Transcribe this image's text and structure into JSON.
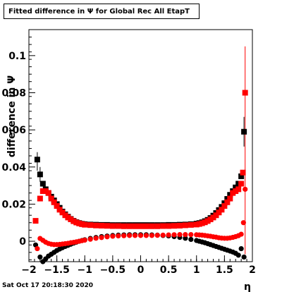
{
  "title": "Fitted difference in  Ψ  for Global Rec All EtapT",
  "footer_date": "Sat Oct 17 20:18:30 2020",
  "colors": {
    "black": "#000000",
    "red": "#ff0000"
  },
  "chart_data": {
    "type": "scatter",
    "title": "Fitted difference in  Ψ  for Global Rec All EtapT",
    "xlabel": "η",
    "ylabel": "difference in  Ψ",
    "xlim": [
      -2,
      2
    ],
    "ylim": [
      -0.011,
      0.114
    ],
    "x_ticks": [
      -2,
      -1.5,
      -1,
      -0.5,
      0,
      0.5,
      1,
      1.5,
      2
    ],
    "x_tick_labels": [
      "−2",
      "−1.5",
      "−1",
      "−0.5",
      "0",
      "0.5",
      "1",
      "1.5",
      "2"
    ],
    "y_ticks": [
      0,
      0.02,
      0.04,
      0.06,
      0.08,
      0.1
    ],
    "y_tick_labels": [
      "0",
      "0.02",
      "0.04",
      "0.06",
      "0.08",
      "0.1"
    ],
    "grid": false,
    "series": [
      {
        "color": "#000000",
        "marker": "square",
        "points": [
          [
            -1.85,
            0.044
          ],
          [
            -1.8,
            0.036
          ],
          [
            -1.75,
            0.031
          ],
          [
            -1.7,
            0.028
          ],
          [
            -1.65,
            0.026
          ],
          [
            -1.6,
            0.024
          ],
          [
            -1.55,
            0.022
          ],
          [
            -1.5,
            0.02
          ],
          [
            -1.45,
            0.018
          ],
          [
            -1.4,
            0.016
          ],
          [
            -1.35,
            0.0145
          ],
          [
            -1.3,
            0.0132
          ],
          [
            -1.25,
            0.012
          ],
          [
            -1.2,
            0.011
          ],
          [
            -1.15,
            0.0103
          ],
          [
            -1.1,
            0.0098
          ],
          [
            -1.05,
            0.0094
          ],
          [
            -1.0,
            0.0092
          ],
          [
            -0.9,
            0.009
          ],
          [
            -0.8,
            0.0089
          ],
          [
            -0.7,
            0.0088
          ],
          [
            -0.6,
            0.0088
          ],
          [
            -0.5,
            0.0087
          ],
          [
            -0.4,
            0.0087
          ],
          [
            -0.3,
            0.0087
          ],
          [
            -0.2,
            0.0087
          ],
          [
            -0.1,
            0.0087
          ],
          [
            0.0,
            0.0087
          ],
          [
            0.1,
            0.0087
          ],
          [
            0.2,
            0.0087
          ],
          [
            0.3,
            0.0087
          ],
          [
            0.4,
            0.0087
          ],
          [
            0.5,
            0.0088
          ],
          [
            0.6,
            0.0088
          ],
          [
            0.7,
            0.0089
          ],
          [
            0.8,
            0.009
          ],
          [
            0.9,
            0.0092
          ],
          [
            1.0,
            0.0095
          ],
          [
            1.05,
            0.0098
          ],
          [
            1.1,
            0.0102
          ],
          [
            1.15,
            0.0108
          ],
          [
            1.2,
            0.0115
          ],
          [
            1.25,
            0.0125
          ],
          [
            1.3,
            0.0138
          ],
          [
            1.35,
            0.0152
          ],
          [
            1.4,
            0.0168
          ],
          [
            1.45,
            0.0185
          ],
          [
            1.5,
            0.0205
          ],
          [
            1.55,
            0.0228
          ],
          [
            1.6,
            0.025
          ],
          [
            1.65,
            0.027
          ],
          [
            1.7,
            0.029
          ],
          [
            1.75,
            0.031
          ],
          [
            1.8,
            0.035
          ],
          [
            1.85,
            0.059
          ]
        ]
      },
      {
        "color": "#ff0000",
        "marker": "square",
        "points": [
          [
            -1.88,
            0.011
          ],
          [
            -1.8,
            0.023
          ],
          [
            -1.75,
            0.027
          ],
          [
            -1.7,
            0.027
          ],
          [
            -1.65,
            0.026
          ],
          [
            -1.6,
            0.023
          ],
          [
            -1.55,
            0.021
          ],
          [
            -1.5,
            0.019
          ],
          [
            -1.45,
            0.017
          ],
          [
            -1.4,
            0.0155
          ],
          [
            -1.35,
            0.014
          ],
          [
            -1.3,
            0.0128
          ],
          [
            -1.25,
            0.0118
          ],
          [
            -1.2,
            0.0108
          ],
          [
            -1.15,
            0.0101
          ],
          [
            -1.1,
            0.0096
          ],
          [
            -1.05,
            0.0092
          ],
          [
            -1.0,
            0.0089
          ],
          [
            -0.9,
            0.0087
          ],
          [
            -0.8,
            0.0085
          ],
          [
            -0.7,
            0.0084
          ],
          [
            -0.6,
            0.0083
          ],
          [
            -0.5,
            0.0082
          ],
          [
            -0.4,
            0.0082
          ],
          [
            -0.3,
            0.0081
          ],
          [
            -0.2,
            0.0081
          ],
          [
            -0.1,
            0.0081
          ],
          [
            0.0,
            0.0081
          ],
          [
            0.1,
            0.0081
          ],
          [
            0.2,
            0.0081
          ],
          [
            0.3,
            0.0081
          ],
          [
            0.4,
            0.0082
          ],
          [
            0.5,
            0.0082
          ],
          [
            0.6,
            0.0083
          ],
          [
            0.7,
            0.0084
          ],
          [
            0.8,
            0.0086
          ],
          [
            0.9,
            0.0088
          ],
          [
            1.0,
            0.009
          ],
          [
            1.05,
            0.0093
          ],
          [
            1.1,
            0.0097
          ],
          [
            1.15,
            0.0102
          ],
          [
            1.2,
            0.0109
          ],
          [
            1.25,
            0.0118
          ],
          [
            1.3,
            0.0128
          ],
          [
            1.35,
            0.014
          ],
          [
            1.4,
            0.0155
          ],
          [
            1.45,
            0.017
          ],
          [
            1.5,
            0.019
          ],
          [
            1.55,
            0.021
          ],
          [
            1.6,
            0.023
          ],
          [
            1.65,
            0.026
          ],
          [
            1.7,
            0.027
          ],
          [
            1.75,
            0.028
          ],
          [
            1.8,
            0.031
          ],
          [
            1.83,
            0.037
          ],
          [
            1.87,
            0.08
          ]
        ]
      },
      {
        "color": "#000000",
        "marker": "circle",
        "points": [
          [
            -1.88,
            -0.002
          ],
          [
            -1.8,
            -0.0085
          ],
          [
            -1.75,
            -0.011
          ],
          [
            -1.7,
            -0.0095
          ],
          [
            -1.65,
            -0.008
          ],
          [
            -1.6,
            -0.007
          ],
          [
            -1.55,
            -0.006
          ],
          [
            -1.5,
            -0.005
          ],
          [
            -1.45,
            -0.0042
          ],
          [
            -1.4,
            -0.0035
          ],
          [
            -1.35,
            -0.0028
          ],
          [
            -1.3,
            -0.0022
          ],
          [
            -1.25,
            -0.0016
          ],
          [
            -1.2,
            -0.001
          ],
          [
            -1.15,
            -0.0005
          ],
          [
            -1.1,
            0.0
          ],
          [
            -1.05,
            0.0004
          ],
          [
            -1.0,
            0.0008
          ],
          [
            -0.9,
            0.0015
          ],
          [
            -0.8,
            0.002
          ],
          [
            -0.7,
            0.0025
          ],
          [
            -0.6,
            0.0028
          ],
          [
            -0.5,
            0.0031
          ],
          [
            -0.4,
            0.0033
          ],
          [
            -0.3,
            0.0034
          ],
          [
            -0.2,
            0.0035
          ],
          [
            -0.1,
            0.0035
          ],
          [
            0.0,
            0.0035
          ],
          [
            0.1,
            0.0035
          ],
          [
            0.2,
            0.0034
          ],
          [
            0.3,
            0.0033
          ],
          [
            0.4,
            0.0031
          ],
          [
            0.5,
            0.0029
          ],
          [
            0.6,
            0.0025
          ],
          [
            0.7,
            0.0021
          ],
          [
            0.8,
            0.0016
          ],
          [
            0.9,
            0.001
          ],
          [
            1.0,
            0.0004
          ],
          [
            1.05,
            0.0
          ],
          [
            1.1,
            -0.0004
          ],
          [
            1.15,
            -0.0008
          ],
          [
            1.2,
            -0.0013
          ],
          [
            1.25,
            -0.0018
          ],
          [
            1.3,
            -0.0023
          ],
          [
            1.35,
            -0.0028
          ],
          [
            1.4,
            -0.0033
          ],
          [
            1.45,
            -0.0038
          ],
          [
            1.5,
            -0.0043
          ],
          [
            1.55,
            -0.0048
          ],
          [
            1.6,
            -0.0053
          ],
          [
            1.65,
            -0.0058
          ],
          [
            1.7,
            -0.0065
          ],
          [
            1.75,
            -0.0075
          ],
          [
            1.8,
            -0.004
          ],
          [
            1.85,
            -0.0085
          ]
        ]
      },
      {
        "color": "#ff0000",
        "marker": "circle",
        "points": [
          [
            -1.85,
            -0.004
          ],
          [
            -1.8,
            0.0015
          ],
          [
            -1.75,
            0.0005
          ],
          [
            -1.7,
            -0.0005
          ],
          [
            -1.65,
            -0.0012
          ],
          [
            -1.6,
            -0.0016
          ],
          [
            -1.55,
            -0.0018
          ],
          [
            -1.5,
            -0.0018
          ],
          [
            -1.45,
            -0.0017
          ],
          [
            -1.4,
            -0.0015
          ],
          [
            -1.35,
            -0.0013
          ],
          [
            -1.3,
            -0.0011
          ],
          [
            -1.25,
            -0.0008
          ],
          [
            -1.2,
            -0.0006
          ],
          [
            -1.15,
            -0.0003
          ],
          [
            -1.1,
            0.0
          ],
          [
            -1.05,
            0.0003
          ],
          [
            -1.0,
            0.0006
          ],
          [
            -0.9,
            0.0011
          ],
          [
            -0.8,
            0.0016
          ],
          [
            -0.7,
            0.002
          ],
          [
            -0.6,
            0.0024
          ],
          [
            -0.5,
            0.0027
          ],
          [
            -0.4,
            0.0029
          ],
          [
            -0.3,
            0.003
          ],
          [
            -0.2,
            0.0031
          ],
          [
            -0.1,
            0.0031
          ],
          [
            0.0,
            0.0031
          ],
          [
            0.1,
            0.0031
          ],
          [
            0.2,
            0.0031
          ],
          [
            0.3,
            0.0032
          ],
          [
            0.4,
            0.0033
          ],
          [
            0.5,
            0.0034
          ],
          [
            0.6,
            0.0035
          ],
          [
            0.7,
            0.0036
          ],
          [
            0.8,
            0.0036
          ],
          [
            0.9,
            0.0036
          ],
          [
            1.0,
            0.0035
          ],
          [
            1.05,
            0.0034
          ],
          [
            1.1,
            0.0033
          ],
          [
            1.15,
            0.0031
          ],
          [
            1.2,
            0.0029
          ],
          [
            1.25,
            0.0027
          ],
          [
            1.3,
            0.0024
          ],
          [
            1.35,
            0.0022
          ],
          [
            1.4,
            0.0019
          ],
          [
            1.45,
            0.0017
          ],
          [
            1.5,
            0.0016
          ],
          [
            1.55,
            0.0016
          ],
          [
            1.6,
            0.0018
          ],
          [
            1.65,
            0.0021
          ],
          [
            1.7,
            0.0025
          ],
          [
            1.75,
            0.003
          ],
          [
            1.8,
            0.0038
          ],
          [
            1.84,
            0.01
          ],
          [
            1.87,
            0.028
          ]
        ]
      }
    ],
    "error_bars": [
      {
        "x": -1.85,
        "y_low": 0.038,
        "y_high": 0.048,
        "color": "#000000"
      },
      {
        "x": -1.8,
        "y_low": 0.032,
        "y_high": 0.04,
        "color": "#000000"
      },
      {
        "x": 1.87,
        "y_low": -0.007,
        "y_high": 0.105,
        "color": "#ff0000"
      },
      {
        "x": 1.85,
        "y_low": 0.051,
        "y_high": 0.067,
        "color": "#000000"
      }
    ]
  }
}
